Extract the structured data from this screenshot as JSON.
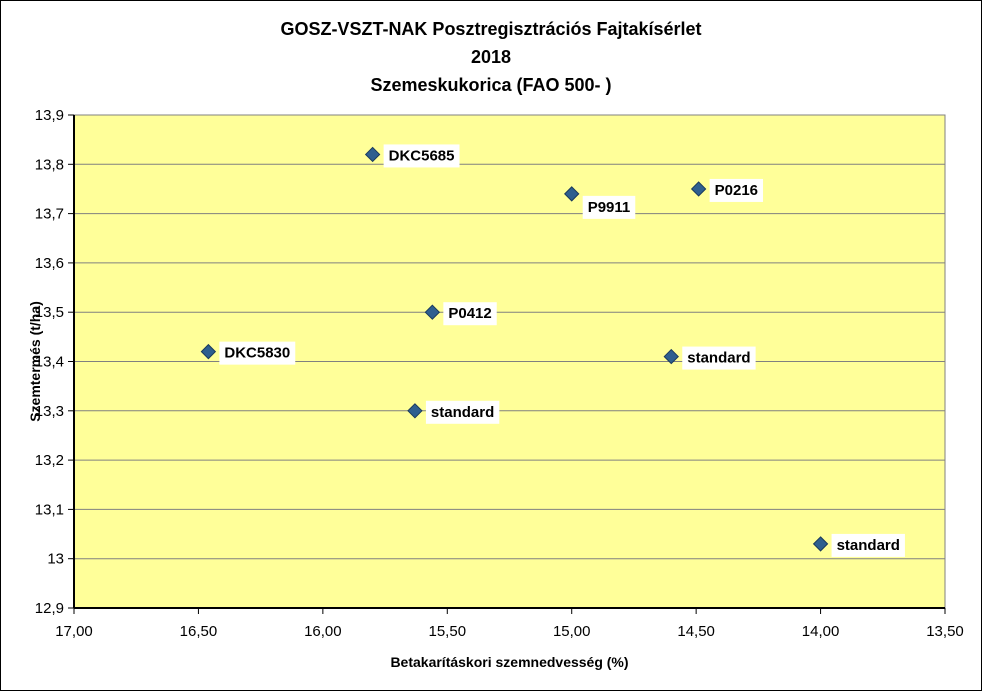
{
  "chart_data": {
    "type": "scatter",
    "title_lines": [
      "GOSZ-VSZT-NAK Posztregisztrációs Fajtakísérlet",
      "2018",
      "Szemeskukorica (FAO 500- )"
    ],
    "xlabel": "Betakarításkori szemnedvesség (%)",
    "ylabel": "Szemtermés (t/ha)",
    "x_reversed": true,
    "xlim": [
      13.5,
      17.0
    ],
    "ylim": [
      12.9,
      13.9
    ],
    "x_ticks": [
      17.0,
      16.5,
      16.0,
      15.5,
      15.0,
      14.5,
      14.0,
      13.5
    ],
    "x_tick_labels": [
      "17,00",
      "16,50",
      "16,00",
      "15,50",
      "15,00",
      "14,50",
      "14,00",
      "13,50"
    ],
    "y_ticks": [
      12.9,
      13.0,
      13.1,
      13.2,
      13.3,
      13.4,
      13.5,
      13.6,
      13.7,
      13.8,
      13.9
    ],
    "y_tick_labels": [
      "12,9",
      "13",
      "13,1",
      "13,2",
      "13,3",
      "13,4",
      "13,5",
      "13,6",
      "13,7",
      "13,8",
      "13,9"
    ],
    "grid": true,
    "plot_background": "#ffff99",
    "marker_color": "#2e5f8f",
    "points": [
      {
        "label": "DKC5685",
        "x": 15.8,
        "y": 13.82
      },
      {
        "label": "P9911",
        "x": 15.0,
        "y": 13.74
      },
      {
        "label": "P0216",
        "x": 14.49,
        "y": 13.75
      },
      {
        "label": "P0412",
        "x": 15.56,
        "y": 13.5
      },
      {
        "label": "DKC5830",
        "x": 16.46,
        "y": 13.42
      },
      {
        "label": "standard",
        "x": 14.6,
        "y": 13.41
      },
      {
        "label": "standard",
        "x": 15.63,
        "y": 13.3
      },
      {
        "label": "standard",
        "x": 14.0,
        "y": 13.03
      }
    ]
  }
}
